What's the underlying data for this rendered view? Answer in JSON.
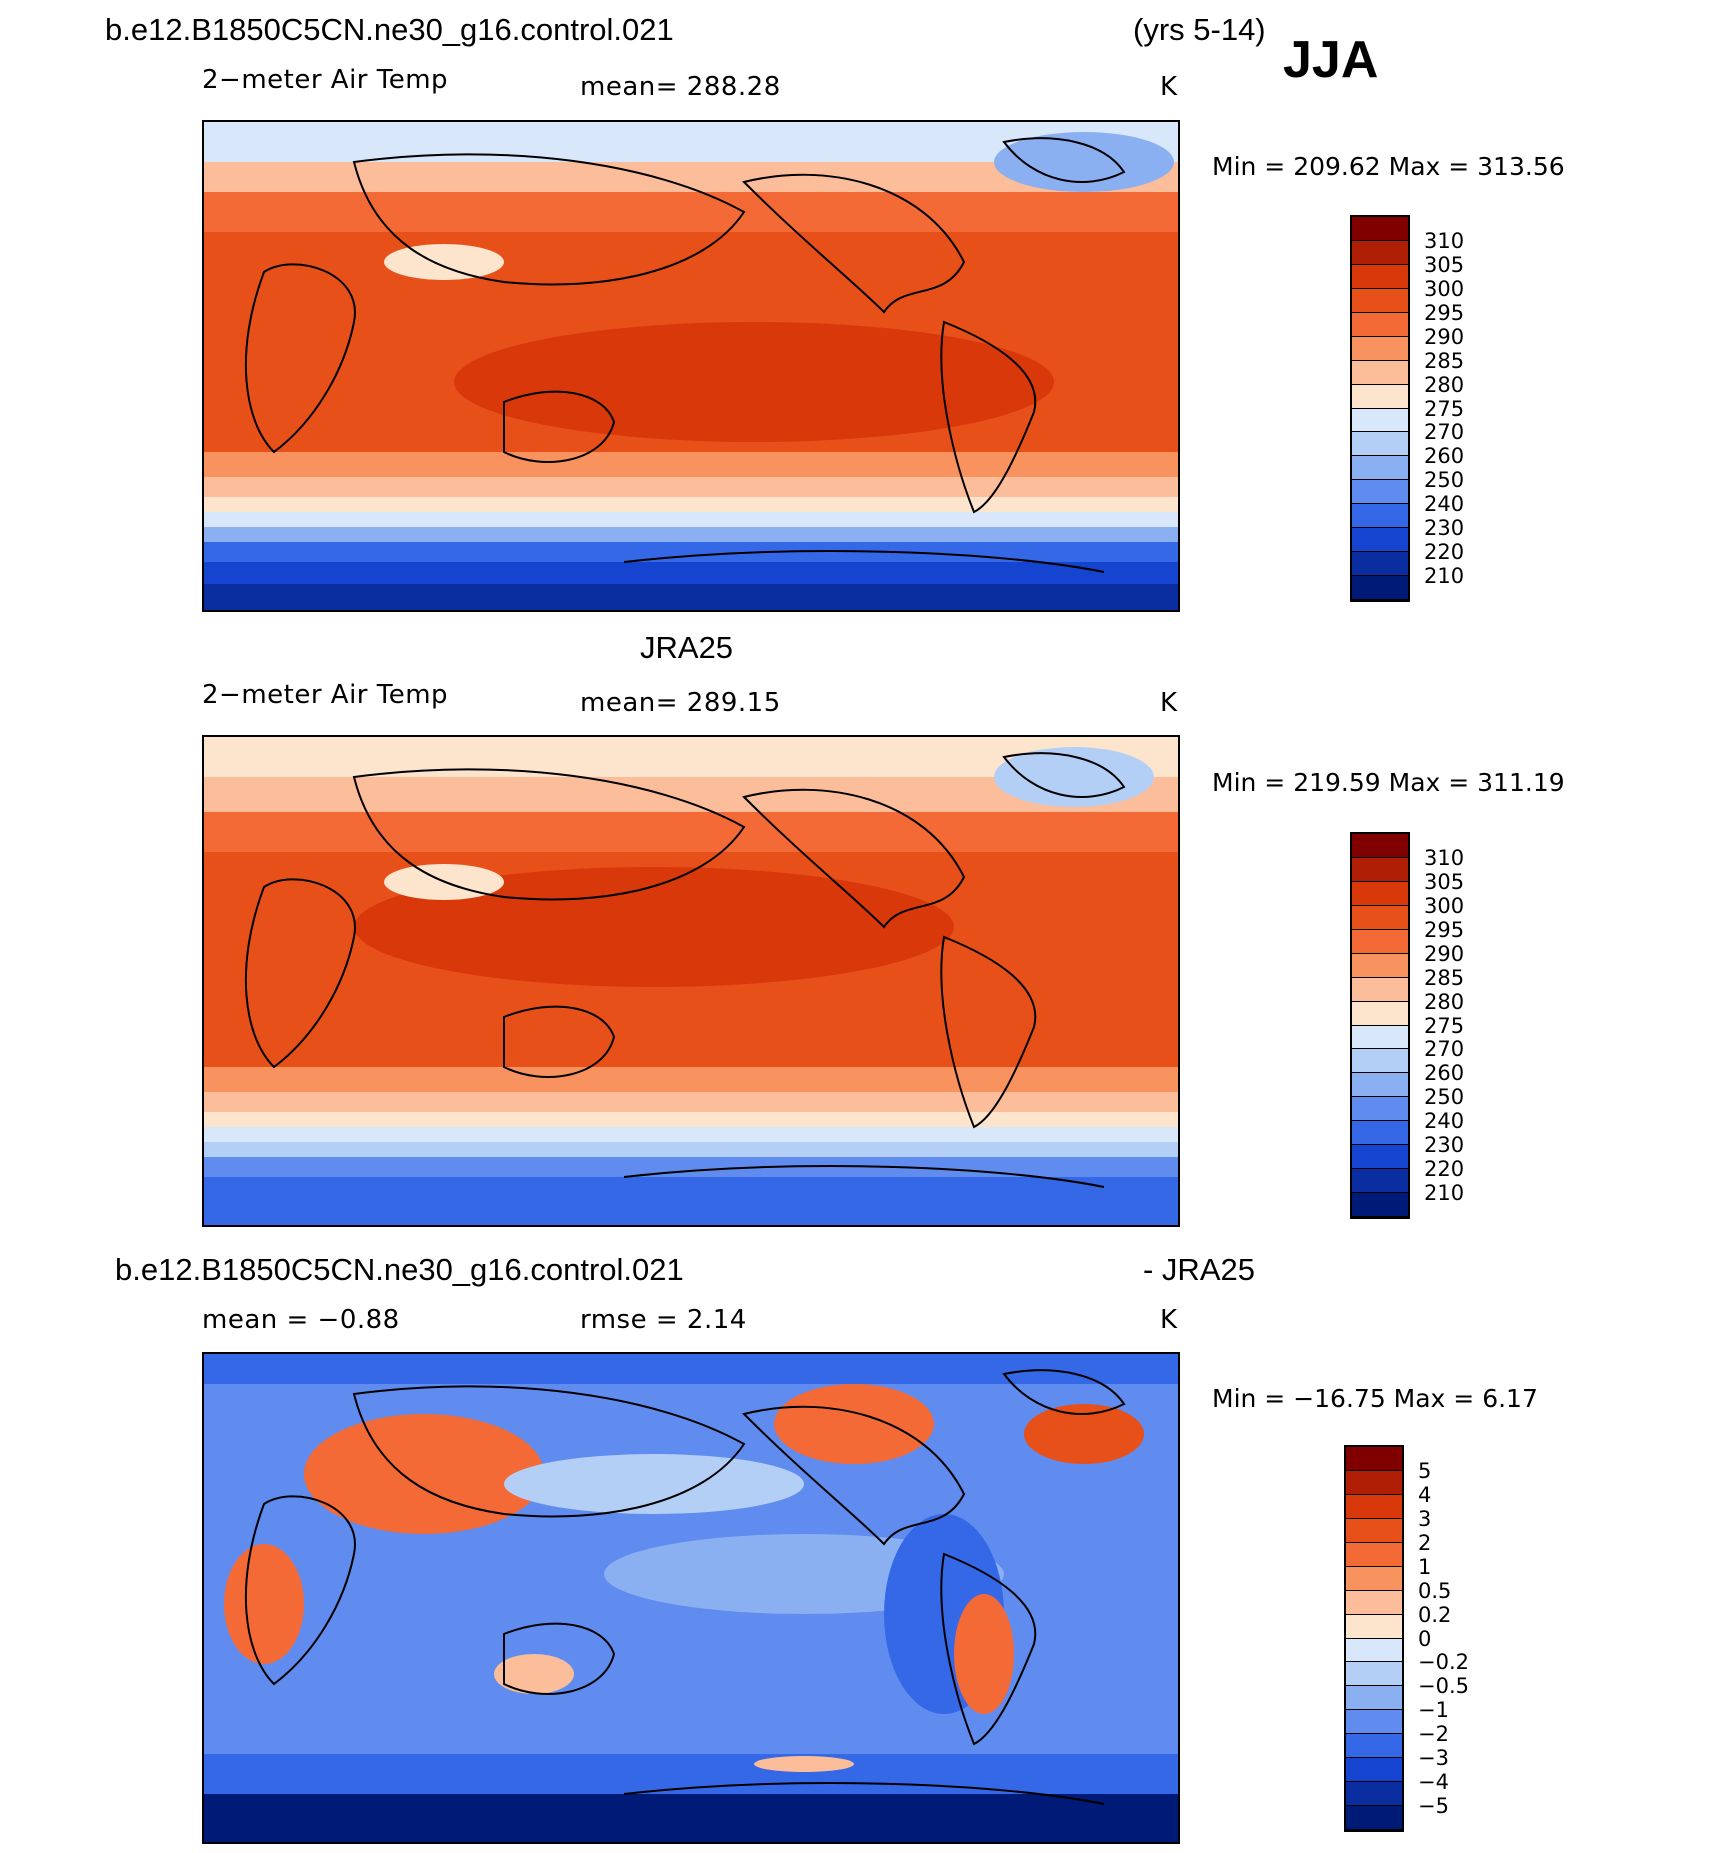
{
  "header": {
    "case_name": "b.e12.B1850C5CN.ne30_g16.control.021",
    "years": "(yrs 5-14)",
    "season": "JJA"
  },
  "panels": [
    {
      "id": "model",
      "title": "",
      "variable": "2−meter Air Temp",
      "stat": "mean=  288.28",
      "units": "K",
      "minmax": "Min  =  209.62  Max  =  313.56",
      "palette": "temperature"
    },
    {
      "id": "obs",
      "title": "JRA25",
      "variable": "2−meter Air Temp",
      "stat": "mean=  289.15",
      "units": "K",
      "minmax": "Min  =  219.59  Max  =  311.19",
      "palette": "temperature"
    },
    {
      "id": "diff",
      "title_left": "b.e12.B1850C5CN.ne30_g16.control.021",
      "title_right": "- JRA25",
      "variable": "mean  =    −0.88",
      "stat": "rmse  =     2.14",
      "units": "K",
      "minmax": "Min  =  −16.75  Max  =     6.17",
      "palette": "difference"
    }
  ],
  "colorbars": {
    "temperature": {
      "labels": [
        "310",
        "305",
        "300",
        "295",
        "290",
        "285",
        "280",
        "275",
        "270",
        "260",
        "250",
        "240",
        "230",
        "220",
        "210"
      ],
      "colors": [
        "#800000",
        "#b01e05",
        "#d8380a",
        "#e8501a",
        "#f46a36",
        "#f8935f",
        "#fbbd9a",
        "#fde4cd",
        "#d8e8fa",
        "#b4cff6",
        "#8ab0f2",
        "#5f8cee",
        "#3568e6",
        "#1544d0",
        "#0a2ea0",
        "#001a78"
      ]
    },
    "difference": {
      "labels": [
        "5",
        "4",
        "3",
        "2",
        "1",
        "0.5",
        "0.2",
        "0",
        "−0.2",
        "−0.5",
        "−1",
        "−2",
        "−3",
        "−4",
        "−5"
      ],
      "colors": [
        "#800000",
        "#b01e05",
        "#d8380a",
        "#e8501a",
        "#f46a36",
        "#f8935f",
        "#fbbd9a",
        "#fde4cd",
        "#d8e8fa",
        "#b4cff6",
        "#8ab0f2",
        "#5f8cee",
        "#3568e6",
        "#1544d0",
        "#0a2ea0",
        "#001a78"
      ]
    }
  }
}
